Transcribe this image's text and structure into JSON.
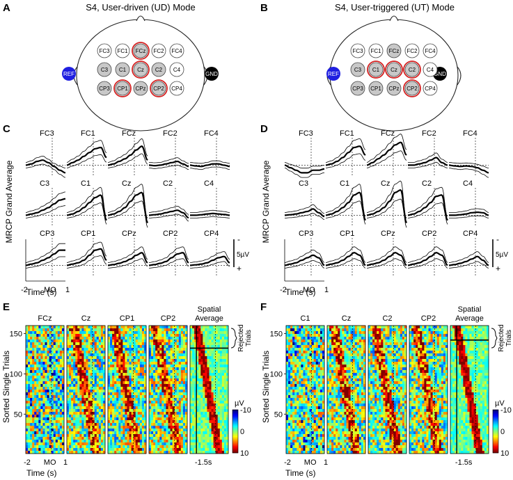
{
  "figure": {
    "panels": [
      {
        "letter": "A",
        "title": "S4, User-driven (UD) Mode"
      },
      {
        "letter": "B",
        "title": "S4, User-triggered (UT) Mode"
      },
      {
        "letter": "C"
      },
      {
        "letter": "D"
      },
      {
        "letter": "E"
      },
      {
        "letter": "F"
      }
    ]
  },
  "colors": {
    "ref": "#1f1fe0",
    "gnd": "#000000",
    "selected_ring": "#d42020",
    "gray_fill": "#c8c8c8",
    "white_fill": "#ffffff",
    "colormap": [
      "#00007f",
      "#0000ff",
      "#007fff",
      "#00ffff",
      "#7fff7f",
      "#ffff00",
      "#ff7f00",
      "#ff0000",
      "#7f0000"
    ]
  },
  "montage": {
    "ref_label": "REF",
    "gnd_label": "GND",
    "rows": [
      [
        "FC3",
        "FC1",
        "FCz",
        "FC2",
        "FC4"
      ],
      [
        "C3",
        "C1",
        "Cz",
        "C2",
        "C4"
      ],
      [
        "CP3",
        "CP1",
        "CPz",
        "CP2",
        "CP4"
      ]
    ],
    "UD": {
      "gray": [
        "FCz",
        "C3",
        "C1",
        "Cz",
        "C2",
        "CP3",
        "CP1",
        "CPz",
        "CP2"
      ],
      "selected": [
        "FCz",
        "Cz",
        "CP1",
        "CP2"
      ]
    },
    "UT": {
      "gray": [
        "FCz",
        "C3",
        "C1",
        "Cz",
        "C2",
        "CP3",
        "CP1",
        "CPz",
        "CP2"
      ],
      "selected": [
        "C1",
        "Cz",
        "C2",
        "CP2"
      ]
    }
  },
  "mrcp": {
    "ylabel": "MRCP Grand Average",
    "xlabel": "Time (s)",
    "xticks": [
      "-2",
      "MO",
      "1"
    ],
    "scale": {
      "label": "5µV",
      "minus": "-",
      "plus": "+"
    }
  },
  "single_trials": {
    "ylabel": "Sorted Single Trials",
    "xlabel": "Time (s)",
    "xticks": [
      "-2",
      "MO",
      "1"
    ],
    "yticks": [
      "150",
      "100",
      "50"
    ],
    "rejected_label_1": "Rejected",
    "rejected_label_2": "Trials",
    "spatial_avg_1": "Spatial",
    "spatial_avg_2": "Average",
    "spatial_marker": "-1.5s",
    "cb_unit": "µV",
    "cb_ticks": [
      "-10",
      "0",
      "10"
    ],
    "E_channels": [
      "FCz",
      "Cz",
      "CP1",
      "CP2"
    ],
    "F_channels": [
      "C1",
      "Cz",
      "C2",
      "CP2"
    ]
  },
  "chart_data": [
    {
      "type": "line",
      "title": "MRCP Grand Average - UD mode (panel C)",
      "x_range": [
        -2,
        1
      ],
      "x_unit": "s",
      "y_unit": "µV (negative up)",
      "channels": {
        "FC3": {
          "mean": [
            0,
            -0.5,
            -1.5,
            -2,
            -1,
            0.5,
            2,
            3
          ],
          "peak_time": 0.6
        },
        "FC1": {
          "mean": [
            0,
            -1,
            -2,
            -3.5,
            -5,
            -6.5,
            -7,
            -3
          ],
          "peak_time": 0
        },
        "FCz": {
          "mean": [
            0,
            -0.5,
            -1.5,
            -2.5,
            -4,
            -6,
            -7.5,
            -2
          ],
          "peak_time": 0
        },
        "FC2": {
          "mean": [
            0,
            0.2,
            0,
            -0.5,
            -1,
            -1.5,
            -0.5,
            0.5
          ],
          "peak_time": 0
        },
        "FC4": {
          "mean": [
            0,
            0.3,
            0.5,
            0,
            -0.5,
            -0.5,
            0,
            0.5
          ],
          "peak_time": 0
        },
        "C3": {
          "mean": [
            0,
            -0.5,
            -1,
            -2,
            -3,
            -4.5,
            -6,
            -6.5
          ],
          "peak_time": 0.5
        },
        "C1": {
          "mean": [
            0,
            -0.5,
            -1.5,
            -3,
            -5,
            -7,
            -8,
            2
          ],
          "peak_time": -0.1
        },
        "Cz": {
          "mean": [
            0,
            -0.5,
            -1.5,
            -3,
            -5.5,
            -8,
            -9,
            3
          ],
          "peak_time": -0.1
        },
        "C2": {
          "mean": [
            0,
            -0.2,
            -0.5,
            -1,
            -1.5,
            -2,
            -1,
            1
          ],
          "peak_time": -0.1
        },
        "C4": {
          "mean": [
            0,
            0,
            -0.2,
            -0.5,
            -0.7,
            -0.5,
            -0.3,
            0
          ],
          "peak_time": 0
        },
        "CP3": {
          "mean": [
            0,
            -0.5,
            -1,
            -2,
            -3,
            -4.5,
            -6,
            -6
          ],
          "peak_time": 0.5
        },
        "CP1": {
          "mean": [
            0,
            -0.5,
            -1,
            -2,
            -4,
            -6,
            -6.5,
            -2
          ],
          "peak_time": 0
        },
        "CPz": {
          "mean": [
            0,
            -0.3,
            -0.8,
            -1.5,
            -2.5,
            -4,
            -5,
            -1
          ],
          "peak_time": 0
        },
        "CP2": {
          "mean": [
            0,
            -0.3,
            -0.8,
            -1.5,
            -3,
            -4.5,
            -5,
            -1
          ],
          "peak_time": 0
        },
        "CP4": {
          "mean": [
            0,
            -0.2,
            -0.5,
            -1,
            -2,
            -3,
            -3.5,
            -1
          ],
          "peak_time": 0
        }
      }
    },
    {
      "type": "line",
      "title": "MRCP Grand Average - UT mode (panel D)",
      "x_range": [
        -2,
        1
      ],
      "x_unit": "s",
      "y_unit": "µV (negative up)",
      "channels": {
        "FC3": {
          "mean": [
            0,
            1,
            2,
            3,
            3,
            2,
            2,
            1.5
          ],
          "peak_time": 0
        },
        "FC1": {
          "mean": [
            0,
            -0.5,
            -1.5,
            -3,
            -5,
            -7,
            -7.5,
            -4
          ],
          "peak_time": 0
        },
        "FCz": {
          "mean": [
            0,
            -1,
            -2.5,
            -4,
            -6,
            -8,
            -9,
            -4
          ],
          "peak_time": 0
        },
        "FC2": {
          "mean": [
            0,
            0,
            -0.5,
            -1,
            -2,
            -3,
            -1,
            0
          ],
          "peak_time": 0
        },
        "FC4": {
          "mean": [
            0,
            0.3,
            0.5,
            0.3,
            0.5,
            1,
            2,
            3
          ],
          "peak_time": 0.5
        },
        "C3": {
          "mean": [
            0,
            -0.2,
            -0.5,
            -1,
            -1.5,
            -2.5,
            -1,
            0.5
          ],
          "peak_time": 0
        },
        "C1": {
          "mean": [
            0,
            -0.5,
            -1.5,
            -3,
            -5,
            -8,
            -9,
            2
          ],
          "peak_time": -0.1
        },
        "Cz": {
          "mean": [
            0,
            -0.5,
            -1.5,
            -3,
            -5.5,
            -9,
            -10,
            3
          ],
          "peak_time": -0.1
        },
        "C2": {
          "mean": [
            0,
            -0.5,
            -1.5,
            -3,
            -5,
            -7.5,
            -8,
            2
          ],
          "peak_time": -0.1
        },
        "C4": {
          "mean": [
            0,
            0,
            -0.2,
            -0.5,
            -1,
            -1.2,
            -1,
            0
          ],
          "peak_time": 0
        },
        "CP3": {
          "mean": [
            0,
            -0.5,
            -1,
            -2,
            -3,
            -4,
            -3,
            0
          ],
          "peak_time": 0
        },
        "CP1": {
          "mean": [
            0,
            -0.5,
            -1,
            -2,
            -3.5,
            -5,
            -4,
            0
          ],
          "peak_time": 0
        },
        "CPz": {
          "mean": [
            0,
            -0.5,
            -1,
            -2,
            -3.5,
            -5,
            -4,
            0
          ],
          "peak_time": 0
        },
        "CP2": {
          "mean": [
            0,
            -0.5,
            -1,
            -2,
            -3.5,
            -5,
            -4,
            0
          ],
          "peak_time": 0
        },
        "CP4": {
          "mean": [
            0,
            -0.3,
            -0.8,
            -1.5,
            -2.5,
            -3.5,
            -2,
            0
          ],
          "peak_time": 0
        }
      }
    },
    {
      "type": "heatmap",
      "title": "Sorted Single Trials - UD mode (panel E)",
      "channels": [
        "FCz",
        "Cz",
        "CP1",
        "CP2",
        "Spatial Average"
      ],
      "x_range": [
        -2,
        1
      ],
      "y_range": [
        1,
        160
      ],
      "color_range": [
        -10,
        10
      ],
      "rejected_trials_from": 132,
      "spatial_marker_s": -1.5
    },
    {
      "type": "heatmap",
      "title": "Sorted Single Trials - UT mode (panel F)",
      "channels": [
        "C1",
        "Cz",
        "C2",
        "CP2",
        "Spatial Average"
      ],
      "x_range": [
        -2,
        1
      ],
      "y_range": [
        1,
        160
      ],
      "color_range": [
        -10,
        10
      ],
      "rejected_trials_from": 142,
      "spatial_marker_s": -1.5
    }
  ]
}
